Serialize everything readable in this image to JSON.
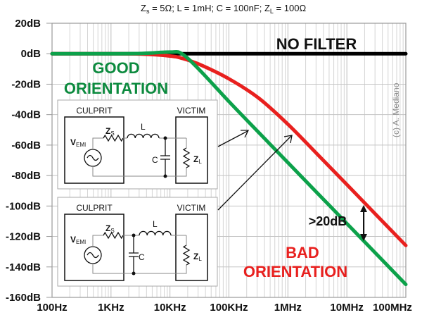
{
  "chart_data": {
    "type": "line",
    "subtitle": "Zs = 5Ω; L = 1mH; C = 100nF; ZL = 100Ω",
    "subtitle_parts": {
      "zs": "Z",
      "zs_sub": "s",
      "rest1": " = 5Ω; L = 1mH; C = 100nF; ",
      "zl": "Z",
      "zl_sub": "L",
      "rest2": " = 100Ω"
    },
    "x_scale": "log",
    "xlim": [
      100,
      100000000
    ],
    "ylim": [
      -160,
      20
    ],
    "x_tick_values": [
      100,
      1000,
      10000,
      100000,
      1000000,
      10000000,
      100000000
    ],
    "x_tick_labels": [
      "100Hz",
      "1KHz",
      "10KHz",
      "100KHz",
      "1MHz",
      "10MHz",
      "100MHz"
    ],
    "y_tick_values": [
      20,
      0,
      -20,
      -40,
      -60,
      -80,
      -100,
      -120,
      -140,
      -160
    ],
    "y_tick_labels": [
      "20dB",
      "0dB",
      "-20dB",
      "-40dB",
      "-60dB",
      "-80dB",
      "-100dB",
      "-120dB",
      "-140dB",
      "-160dB"
    ],
    "grid": true,
    "x": [
      100,
      316,
      1000,
      3160,
      10000,
      15900,
      31600,
      100000,
      316000,
      1000000,
      3160000,
      10000000,
      31600000,
      100000000
    ],
    "series": [
      {
        "name": "NO FILTER",
        "color": "#000000",
        "values": [
          0,
          0,
          0,
          0,
          0,
          0,
          0,
          0,
          0,
          0,
          0,
          0,
          0,
          0
        ]
      },
      {
        "name": "BAD ORIENTATION",
        "color": "#e8201e",
        "values": [
          0,
          0,
          0,
          -0.2,
          -1.5,
          -3.0,
          -7.0,
          -16.5,
          -29.0,
          -46.3,
          -66.0,
          -85.9,
          -105.9,
          -125.9
        ]
      },
      {
        "name": "GOOD ORIENTATION",
        "color": "#0ca14a",
        "values": [
          0,
          0,
          0,
          0.15,
          1.06,
          0,
          -10.6,
          -31.4,
          -51.5,
          -71.5,
          -91.5,
          -111.5,
          -131.5,
          -151.5
        ]
      }
    ],
    "annotations": {
      "no_filter": "NO FILTER",
      "good_line1": "GOOD",
      "good_line2": "ORIENTATION",
      "bad_line1": "BAD",
      "bad_line2": "ORIENTATION",
      "difference": ">20dB",
      "copyright": "(c) A. Mediano"
    }
  },
  "insets": [
    {
      "culprit": "CULPRIT",
      "victim": "VICTIM",
      "source": "V",
      "source_sub": "EMI",
      "zs": "Z",
      "zs_sub": "S",
      "l": "L",
      "c": "C",
      "zl": "Z",
      "zl_sub": "L"
    },
    {
      "culprit": "CULPRIT",
      "victim": "VICTIM",
      "source": "V",
      "source_sub": "EMI",
      "zs": "Z",
      "zs_sub": "S",
      "l": "L",
      "c": "C",
      "zl": "Z",
      "zl_sub": "L"
    }
  ]
}
